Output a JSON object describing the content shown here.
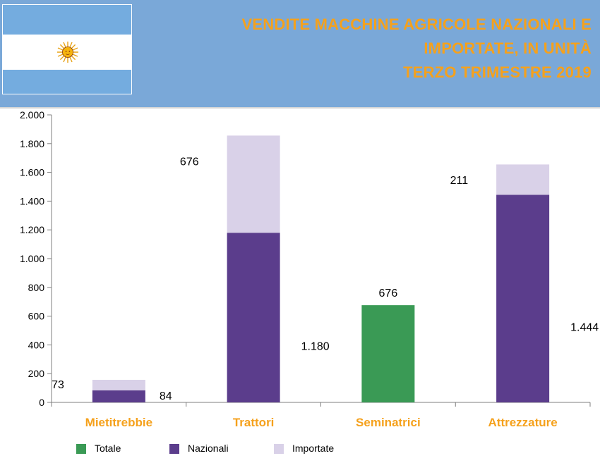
{
  "header": {
    "title_lines": [
      "VENDITE MACCHINE AGRICOLE NAZIONALI E",
      "IMPORTATE, IN UNITÀ",
      "TERZO TRIMESTRE 2019"
    ]
  },
  "colors": {
    "header_bg": "#7aa8d8",
    "title": "#f5a11c",
    "totale": "#3a9a55",
    "nazionali": "#5b3d8c",
    "importate": "#d9d1e8",
    "category_label": "#f5a11c"
  },
  "chart_data": {
    "type": "bar",
    "stacked": true,
    "categories": [
      "Mietitrebbie",
      "Trattori",
      "Seminatrici",
      "Attrezzature"
    ],
    "series": [
      {
        "name": "Totale",
        "values": [
          0,
          0,
          676,
          0
        ]
      },
      {
        "name": "Nazionali",
        "values": [
          84,
          1180,
          0,
          1444
        ]
      },
      {
        "name": "Importate",
        "values": [
          73,
          676,
          0,
          211
        ]
      }
    ],
    "data_labels": [
      {
        "category": "Mietitrebbie",
        "series": "Importate",
        "text": "73"
      },
      {
        "category": "Mietitrebbie",
        "series": "Nazionali",
        "text": "84"
      },
      {
        "category": "Trattori",
        "series": "Importate",
        "text": "676"
      },
      {
        "category": "Trattori",
        "series": "Nazionali",
        "text": "1.180"
      },
      {
        "category": "Seminatrici",
        "series": "Totale",
        "text": "676"
      },
      {
        "category": "Attrezzature",
        "series": "Importate",
        "text": "211"
      },
      {
        "category": "Attrezzature",
        "series": "Nazionali",
        "text": "1.444"
      }
    ],
    "y_ticks": [
      0,
      200,
      400,
      600,
      800,
      1000,
      1200,
      1400,
      1600,
      1800,
      2000
    ],
    "y_tick_labels": [
      "0",
      "200",
      "400",
      "600",
      "800",
      "1.000",
      "1.200",
      "1.400",
      "1.600",
      "1.800",
      "2.000"
    ],
    "ylim": [
      0,
      2000
    ],
    "grid": false,
    "legend": {
      "position": "bottom",
      "items": [
        "Totale",
        "Nazionali",
        "Importate"
      ]
    }
  }
}
